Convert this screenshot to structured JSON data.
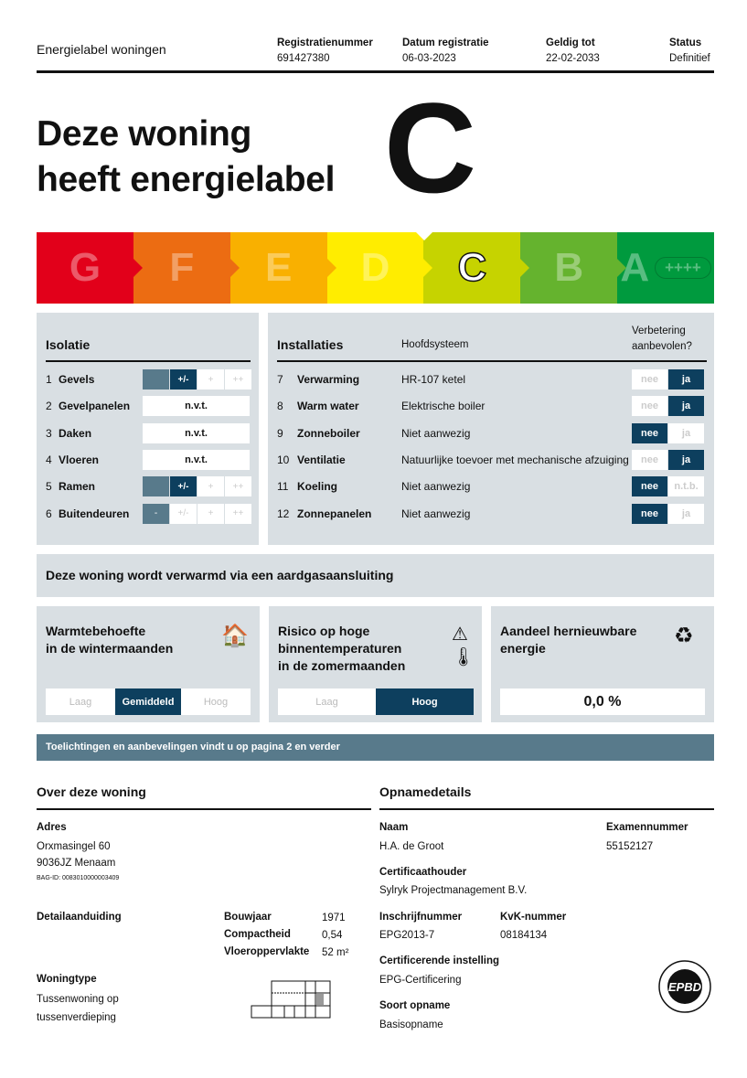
{
  "header": {
    "title": "Energielabel woningen",
    "fields": [
      {
        "label": "Registratienummer",
        "value": "691427380"
      },
      {
        "label": "Datum registratie",
        "value": "06-03-2023"
      },
      {
        "label": "Geldig tot",
        "value": "22-02-2033"
      },
      {
        "label": "Status",
        "value": "Definitief"
      }
    ]
  },
  "headline": {
    "line1": "Deze woning",
    "line2": "heeft energielabel",
    "label": "C"
  },
  "scale": {
    "classes": [
      "G",
      "F",
      "E",
      "D",
      "C",
      "B",
      "A"
    ],
    "colors": [
      "#e2001a",
      "#ec6c12",
      "#f9b000",
      "#ffed00",
      "#c6d300",
      "#65b32e",
      "#009a3e"
    ],
    "selected": "C",
    "a_suffix": "++++"
  },
  "isolatie": {
    "title": "Isolatie",
    "rows": [
      {
        "n": "1",
        "name": "Gevels",
        "levels": [
          "",
          "+/-",
          "+",
          "++"
        ],
        "value": "+/-"
      },
      {
        "n": "2",
        "name": "Gevelpanelen",
        "na": "n.v.t."
      },
      {
        "n": "3",
        "name": "Daken",
        "na": "n.v.t."
      },
      {
        "n": "4",
        "name": "Vloeren",
        "na": "n.v.t."
      },
      {
        "n": "5",
        "name": "Ramen",
        "levels": [
          "",
          "+/-",
          "+",
          "++"
        ],
        "value": "+/-"
      },
      {
        "n": "6",
        "name": "Buitendeuren",
        "levels": [
          "-",
          "+/-",
          "+",
          "++"
        ],
        "value": "-"
      }
    ]
  },
  "installaties": {
    "title": "Installaties",
    "col_system": "Hoofdsysteem",
    "col_improve_1": "Verbetering",
    "col_improve_2": "aanbevolen?",
    "rows": [
      {
        "n": "7",
        "name": "Verwarming",
        "system": "HR-107 ketel",
        "opts": [
          "nee",
          "ja"
        ],
        "value": "ja"
      },
      {
        "n": "8",
        "name": "Warm water",
        "system": "Elektrische boiler",
        "opts": [
          "nee",
          "ja"
        ],
        "value": "ja"
      },
      {
        "n": "9",
        "name": "Zonneboiler",
        "system": "Niet aanwezig",
        "opts": [
          "nee",
          "ja"
        ],
        "value": "nee"
      },
      {
        "n": "10",
        "name": "Ventilatie",
        "system": "Natuurlijke toevoer met mechanische afzuiging",
        "opts": [
          "nee",
          "ja"
        ],
        "value": "ja"
      },
      {
        "n": "11",
        "name": "Koeling",
        "system": "Niet aanwezig",
        "opts": [
          "nee",
          "n.t.b."
        ],
        "value": "nee"
      },
      {
        "n": "12",
        "name": "Zonnepanelen",
        "system": "Niet aanwezig",
        "opts": [
          "nee",
          "ja"
        ],
        "value": "nee"
      }
    ]
  },
  "gas": "Deze woning wordt verwarmd via een aardgasaansluiting",
  "warmte": {
    "title1": "Warmtebehoefte",
    "title2": "in de wintermaanden",
    "options": [
      "Laag",
      "Gemiddeld",
      "Hoog"
    ],
    "value": "Gemiddeld",
    "icon": "house-heating-icon"
  },
  "risico": {
    "title1": "Risico op hoge",
    "title2": "binnentemperaturen",
    "title3": "in de zomermaanden",
    "options": [
      "Laag",
      "Hoog"
    ],
    "value": "Hoog",
    "icon": "thermometer-warning-icon"
  },
  "hernieuwbaar": {
    "title1": "Aandeel hernieuwbare",
    "title2": "energie",
    "value": "0,0 %",
    "icon": "renewable-battery-icon"
  },
  "note": "Toelichtingen en aanbevelingen vindt u op pagina 2 en verder",
  "woning": {
    "title": "Over deze woning",
    "adres_label": "Adres",
    "adres1": "Orxmasingel 60",
    "adres2": "9036JZ Menaam",
    "bag": "BAG-ID: 0083010000003409",
    "detail_label": "Detailaanduiding",
    "props": [
      {
        "label": "Bouwjaar",
        "value": "1971"
      },
      {
        "label": "Compactheid",
        "value": "0,54"
      },
      {
        "label": "Vloeroppervlakte",
        "value": "52 m²"
      }
    ],
    "type_label": "Woningtype",
    "type1": "Tussenwoning op",
    "type2": "tussenverdieping"
  },
  "opname": {
    "title": "Opnamedetails",
    "naam_label": "Naam",
    "naam": "H.A. de Groot",
    "exam_label": "Examennummer",
    "exam": "55152127",
    "cert_label": "Certificaathouder",
    "cert": "Sylryk Projectmanagement B.V.",
    "inschr_label": "Inschrijfnummer",
    "inschr": "EPG2013-7",
    "kvk_label": "KvK-nummer",
    "kvk": "08184134",
    "inst_label": "Certificerende instelling",
    "inst": "EPG-Certificering",
    "soort_label": "Soort opname",
    "soort": "Basisopname",
    "logo_text": "EPBD"
  },
  "colors": {
    "dark": "#0d3f5e",
    "mid": "#587a8b",
    "panel": "#d9dfe3"
  }
}
